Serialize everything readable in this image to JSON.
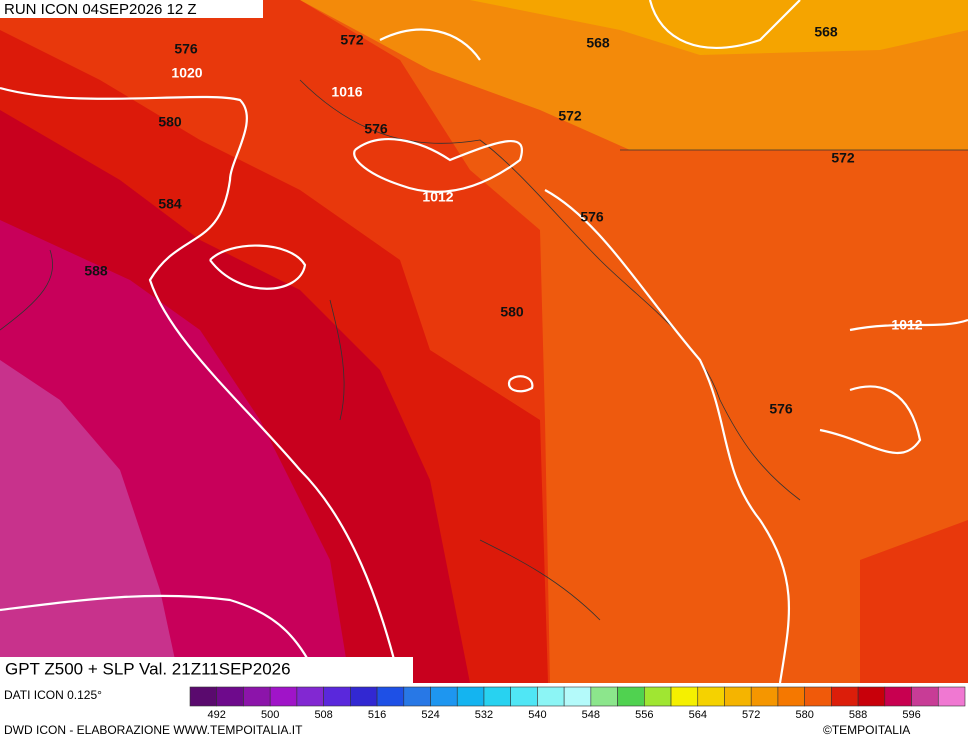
{
  "header": {
    "title": "RUN ICON 04SEP2026 12 Z"
  },
  "footer": {
    "caption": "GPT Z500 + SLP Val. 21Z11SEP2026",
    "source": "DATI ICON 0.125°",
    "credit": "DWD ICON - ELABORAZIONE WWW.TEMPOITALIA.IT",
    "copyright": "©TEMPOITALIA"
  },
  "contours": {
    "labels": [
      "576",
      "572",
      "568",
      "568",
      "1020",
      "1016",
      "580",
      "576",
      "572",
      "572",
      "584",
      "1012",
      "576",
      "588",
      "580",
      "1012",
      "576"
    ]
  },
  "colorbar": {
    "colors": [
      "#5a0a6e",
      "#6e0a8c",
      "#8c14aa",
      "#a014c8",
      "#8228d2",
      "#5a28dc",
      "#3228d2",
      "#1e50e6",
      "#2878e6",
      "#1e96f0",
      "#14b4f0",
      "#28d2f0",
      "#50e6f5",
      "#8cf5f5",
      "#b4fafa",
      "#8ce68c",
      "#50d250",
      "#a0e632",
      "#f5f000",
      "#f5d200",
      "#f5b400",
      "#f59600",
      "#f57800",
      "#f05a0a",
      "#dc1e0a",
      "#c8000a",
      "#c80050",
      "#c83c96",
      "#f078d2"
    ],
    "ticks": [
      492,
      500,
      508,
      516,
      524,
      532,
      540,
      548,
      556,
      564,
      572,
      580,
      588,
      596
    ]
  }
}
